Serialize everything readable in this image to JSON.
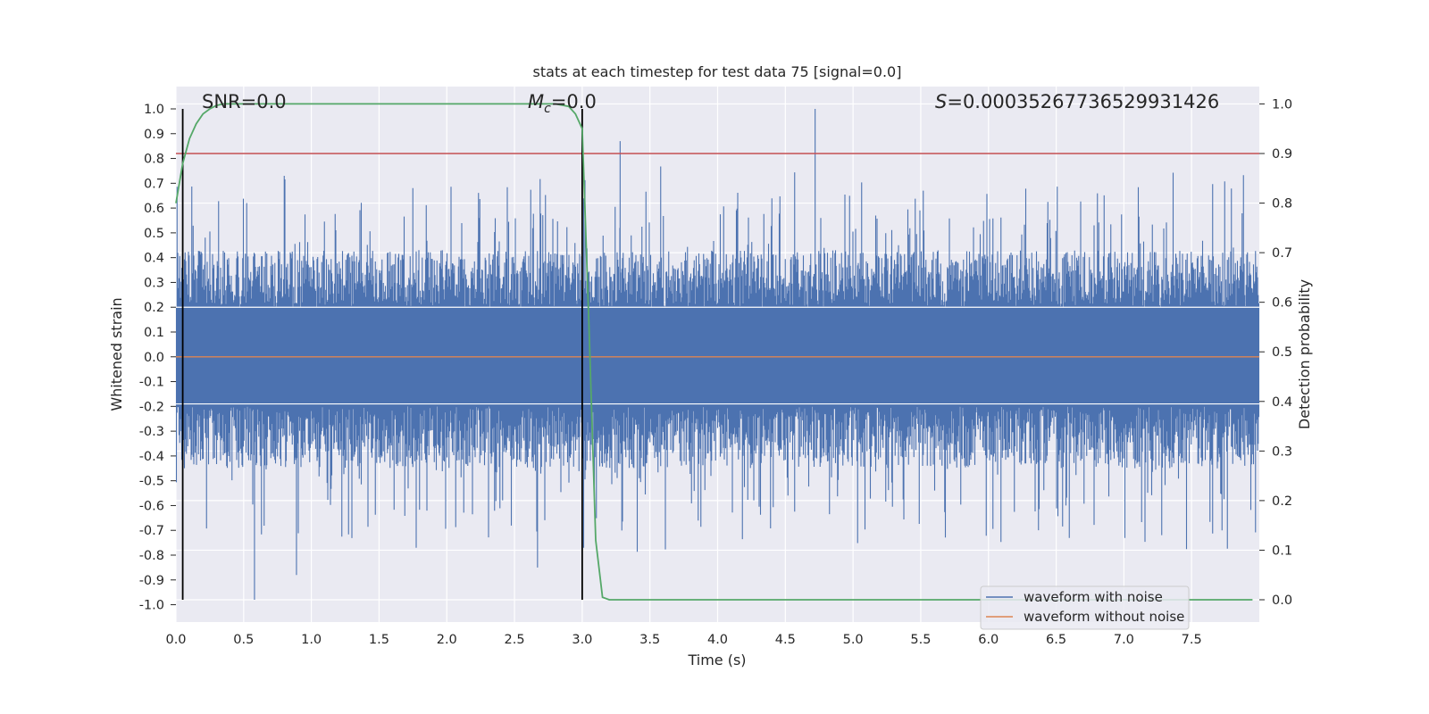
{
  "chart_data": {
    "type": "line",
    "title": "stats at each timestep for test data 75 [signal=0.0]",
    "xlabel": "Time (s)",
    "ylabel_left": "Whitened strain",
    "ylabel_right": "Detection probability",
    "xlim": [
      0.0,
      8.0
    ],
    "ylim_left": [
      -1.07,
      1.09
    ],
    "ylim_right": [
      -0.045,
      1.035
    ],
    "x_ticks": [
      "0.0",
      "0.5",
      "1.0",
      "1.5",
      "2.0",
      "2.5",
      "3.0",
      "3.5",
      "4.0",
      "4.5",
      "5.0",
      "5.5",
      "6.0",
      "6.5",
      "7.0",
      "7.5"
    ],
    "y_left_ticks": [
      "1.0",
      "0.9",
      "0.8",
      "0.7",
      "0.6",
      "0.5",
      "0.4",
      "0.3",
      "0.2",
      "0.1",
      "0.0",
      "-0.1",
      "-0.2",
      "-0.3",
      "-0.4",
      "-0.5",
      "-0.6",
      "-0.7",
      "-0.8",
      "-0.9",
      "-1.0"
    ],
    "y_right_ticks": [
      "1.0",
      "0.9",
      "0.8",
      "0.7",
      "0.6",
      "0.5",
      "0.4",
      "0.3",
      "0.2",
      "0.1",
      "0.0"
    ],
    "grid": true,
    "annotations": {
      "snr": "SNR=0.0",
      "mc_symbol": "M",
      "mc_sub": "c",
      "mc_value": "=0.0",
      "s_symbol": "S",
      "s_value": "=0.00035267736529931426"
    },
    "vertical_lines_x": [
      0.05,
      3.0
    ],
    "threshold_right": 0.9,
    "series": [
      {
        "name": "waveform with noise",
        "color": "#4c72b0",
        "description": "whitened noise, envelope about ±0.4 with spikes up to ±1.0",
        "peaks": [
          {
            "x": 4.72,
            "y": 1.0
          },
          {
            "x": 0.58,
            "y": -0.98
          },
          {
            "x": 3.28,
            "y": 0.87
          },
          {
            "x": 0.89,
            "y": -0.88
          },
          {
            "x": 2.67,
            "y": -0.85
          }
        ]
      },
      {
        "name": "waveform without noise",
        "color": "#dd8452",
        "values_constant": 0.0
      },
      {
        "name": "detection probability",
        "color": "#55a868",
        "axis": "right",
        "x": [
          0.0,
          0.05,
          0.1,
          0.15,
          0.2,
          0.25,
          0.3,
          0.35,
          0.4,
          0.6,
          1.0,
          2.0,
          2.5,
          2.8,
          2.9,
          2.95,
          3.0,
          3.05,
          3.1,
          3.15,
          3.2,
          3.3,
          3.5,
          4.0,
          6.0,
          7.95
        ],
        "values": [
          0.8,
          0.88,
          0.93,
          0.96,
          0.98,
          0.99,
          0.997,
          1.0,
          1.0,
          1.0,
          1.0,
          1.0,
          1.0,
          1.0,
          0.995,
          0.98,
          0.95,
          0.55,
          0.12,
          0.005,
          0.0,
          0.0,
          0.0,
          0.0,
          0.0,
          0.0
        ]
      },
      {
        "name": "threshold",
        "color": "#c44e52",
        "axis": "right",
        "values_constant": 0.9
      }
    ],
    "legend": [
      "waveform with noise",
      "waveform without noise"
    ],
    "legend_position": "lower-right"
  }
}
